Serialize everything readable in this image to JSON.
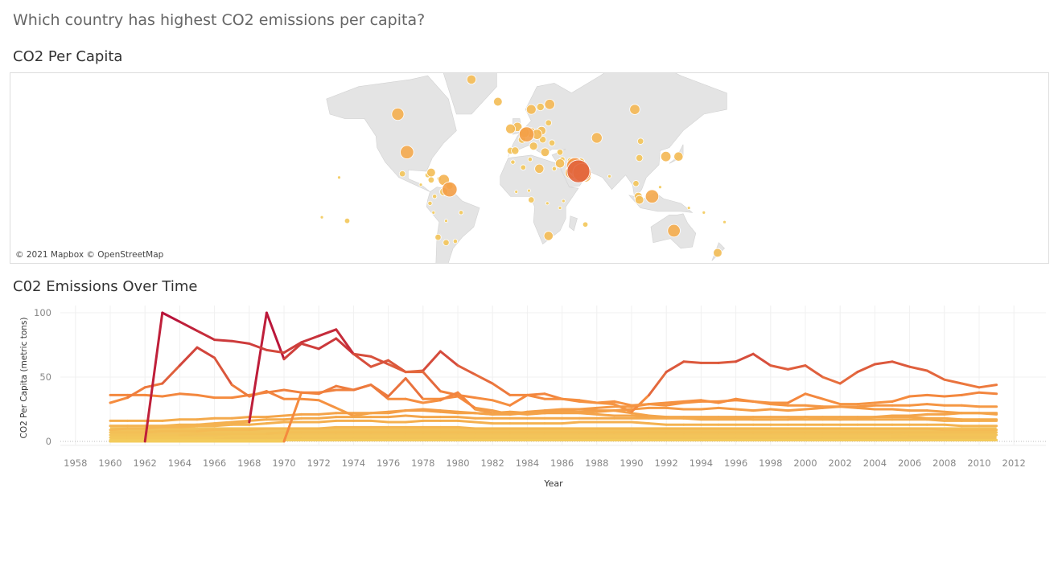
{
  "dashboard": {
    "title": "Which country has highest CO2 emissions per capita?"
  },
  "map": {
    "title": "CO2 Per Capita",
    "credit": "© 2021 Mapbox © OpenStreetMap",
    "bubbles": [
      {
        "lon": -106,
        "lat": 60,
        "v": 16
      },
      {
        "lon": -98,
        "lat": 39,
        "v": 19
      },
      {
        "lon": -42,
        "lat": 72,
        "v": 9
      },
      {
        "lon": -19,
        "lat": 65,
        "v": 8
      },
      {
        "lon": 10,
        "lat": 62,
        "v": 10
      },
      {
        "lon": 18,
        "lat": 63,
        "v": 6
      },
      {
        "lon": 26,
        "lat": 64,
        "v": 11
      },
      {
        "lon": -2,
        "lat": 54,
        "v": 9
      },
      {
        "lon": -8,
        "lat": 53,
        "v": 10
      },
      {
        "lon": 10,
        "lat": 51,
        "v": 10
      },
      {
        "lon": 6,
        "lat": 50,
        "v": 24
      },
      {
        "lon": 4,
        "lat": 51,
        "v": 11
      },
      {
        "lon": 2,
        "lat": 47,
        "v": 6
      },
      {
        "lon": 19,
        "lat": 52,
        "v": 8
      },
      {
        "lon": 25,
        "lat": 56,
        "v": 4
      },
      {
        "lon": 15,
        "lat": 50,
        "v": 11
      },
      {
        "lon": 20,
        "lat": 47,
        "v": 5
      },
      {
        "lon": 12,
        "lat": 43,
        "v": 7
      },
      {
        "lon": -4,
        "lat": 40,
        "v": 6
      },
      {
        "lon": -8,
        "lat": 40,
        "v": 5
      },
      {
        "lon": 22,
        "lat": 39,
        "v": 8
      },
      {
        "lon": 35,
        "lat": 39,
        "v": 4
      },
      {
        "lon": 28,
        "lat": 45,
        "v": 4
      },
      {
        "lon": 35,
        "lat": 31,
        "v": 9
      },
      {
        "lon": 37,
        "lat": 34,
        "v": 3
      },
      {
        "lon": 44,
        "lat": 33,
        "v": 4
      },
      {
        "lon": 45,
        "lat": 24,
        "v": 17
      },
      {
        "lon": 48,
        "lat": 29,
        "v": 30
      },
      {
        "lon": 51,
        "lat": 25,
        "v": 55
      },
      {
        "lon": 50,
        "lat": 26,
        "v": 24
      },
      {
        "lon": 54,
        "lat": 24,
        "v": 35
      },
      {
        "lon": 57,
        "lat": 21,
        "v": 14
      },
      {
        "lon": 53,
        "lat": 32,
        "v": 7
      },
      {
        "lon": 67,
        "lat": 48,
        "v": 12
      },
      {
        "lon": 100,
        "lat": 62,
        "v": 11
      },
      {
        "lon": 105,
        "lat": 46,
        "v": 4
      },
      {
        "lon": 104,
        "lat": 35,
        "v": 5
      },
      {
        "lon": 127,
        "lat": 36,
        "v": 11
      },
      {
        "lon": 138,
        "lat": 36,
        "v": 9
      },
      {
        "lon": 78,
        "lat": 21,
        "v": 1
      },
      {
        "lon": 101,
        "lat": 15,
        "v": 4
      },
      {
        "lon": 103,
        "lat": 4,
        "v": 7
      },
      {
        "lon": 104,
        "lat": 1,
        "v": 8
      },
      {
        "lon": 115,
        "lat": 4,
        "v": 19
      },
      {
        "lon": 122,
        "lat": 12,
        "v": 1
      },
      {
        "lon": 134,
        "lat": -25,
        "v": 17
      },
      {
        "lon": 172,
        "lat": -41,
        "v": 8
      },
      {
        "lon": 160,
        "lat": -10,
        "v": 1
      },
      {
        "lon": 147,
        "lat": -6,
        "v": 1
      },
      {
        "lon": 178,
        "lat": -18,
        "v": 1
      },
      {
        "lon": 3,
        "lat": 28,
        "v": 3
      },
      {
        "lon": 17,
        "lat": 27,
        "v": 9
      },
      {
        "lon": 30,
        "lat": 27,
        "v": 2
      },
      {
        "lon": 9,
        "lat": 34,
        "v": 2
      },
      {
        "lon": -6,
        "lat": 32,
        "v": 2
      },
      {
        "lon": 25,
        "lat": -29,
        "v": 9
      },
      {
        "lon": 57,
        "lat": -20,
        "v": 3
      },
      {
        "lon": 10,
        "lat": 1,
        "v": 4
      },
      {
        "lon": -3,
        "lat": 8,
        "v": 1
      },
      {
        "lon": 8,
        "lat": 9,
        "v": 1
      },
      {
        "lon": 38,
        "lat": 0,
        "v": 1
      },
      {
        "lon": 24,
        "lat": -2,
        "v": 1
      },
      {
        "lon": 35,
        "lat": -6,
        "v": 1
      },
      {
        "lon": -77,
        "lat": 24,
        "v": 8
      },
      {
        "lon": -80,
        "lat": 22,
        "v": 3
      },
      {
        "lon": -70,
        "lat": 19,
        "v": 2
      },
      {
        "lon": -66,
        "lat": 18,
        "v": 13
      },
      {
        "lon": -61,
        "lat": 10,
        "v": 24
      },
      {
        "lon": -61,
        "lat": 13,
        "v": 5
      },
      {
        "lon": -66,
        "lat": 8,
        "v": 7
      },
      {
        "lon": -77,
        "lat": 18,
        "v": 4
      },
      {
        "lon": -102,
        "lat": 23,
        "v": 4
      },
      {
        "lon": -86,
        "lat": 14,
        "v": 1
      },
      {
        "lon": -74,
        "lat": 4,
        "v": 2
      },
      {
        "lon": -78,
        "lat": -2,
        "v": 2
      },
      {
        "lon": -75,
        "lat": -10,
        "v": 1
      },
      {
        "lon": -64,
        "lat": -17,
        "v": 1
      },
      {
        "lon": -71,
        "lat": -30,
        "v": 4
      },
      {
        "lon": -64,
        "lat": -34,
        "v": 4
      },
      {
        "lon": -56,
        "lat": -33,
        "v": 2
      },
      {
        "lon": -51,
        "lat": -10,
        "v": 2
      },
      {
        "lon": -157,
        "lat": 20,
        "v": 1
      },
      {
        "lon": -150,
        "lat": -17,
        "v": 3
      },
      {
        "lon": -172,
        "lat": -14,
        "v": 1
      }
    ]
  },
  "chart": {
    "title": "C02 Emissions Over Time"
  },
  "chart_data": {
    "type": "line",
    "xlabel": "Year",
    "ylabel": "CO2 Per Capita (metric tons)",
    "xlim": [
      1957,
      2013
    ],
    "ylim": [
      -5,
      103
    ],
    "x_ticks": [
      "1958",
      "1960",
      "1962",
      "1964",
      "1966",
      "1968",
      "1970",
      "1972",
      "1974",
      "1976",
      "1978",
      "1980",
      "1982",
      "1984",
      "1986",
      "1988",
      "1990",
      "1992",
      "1994",
      "1996",
      "1998",
      "2000",
      "2002",
      "2004",
      "2006",
      "2008",
      "2010",
      "2012"
    ],
    "y_ticks": [
      "0",
      "50",
      "100"
    ],
    "grid": true,
    "color_scale": {
      "low": "#f3cc5c",
      "mid": "#f58a3e",
      "high": "#b8123a"
    },
    "series": [
      {
        "start": 1960,
        "values": [
          0,
          0,
          0,
          100,
          93,
          86,
          79,
          78,
          76,
          71,
          69,
          77,
          82,
          87,
          68,
          66,
          60,
          54,
          54,
          39,
          36,
          34,
          32,
          28,
          36,
          33,
          33,
          31,
          30,
          31,
          28,
          29,
          30,
          31,
          32,
          30,
          33,
          31,
          29,
          28,
          28,
          27,
          27,
          26,
          25,
          25,
          24,
          24,
          23,
          22,
          22,
          21
        ]
      },
      {
        "start": 1960,
        "values": [
          12,
          12,
          12,
          12,
          12,
          13,
          13,
          14,
          15,
          100,
          64,
          76,
          72,
          80,
          68,
          58,
          63,
          54,
          55,
          70,
          59,
          52,
          45,
          36,
          36,
          37,
          33,
          32,
          30,
          29,
          23,
          36,
          54,
          62,
          61,
          61,
          62,
          68,
          59,
          56,
          59,
          50,
          45,
          54,
          60,
          62,
          58,
          55,
          48,
          45,
          42,
          44
        ]
      },
      {
        "start": 1960,
        "values": [
          30,
          34,
          42,
          45,
          59,
          73,
          65,
          44,
          35,
          39,
          33,
          33,
          32,
          26,
          20,
          22,
          22,
          24,
          25,
          24,
          23,
          22,
          21,
          22,
          21,
          22,
          23,
          23,
          23,
          24,
          25,
          26,
          26,
          25,
          25,
          26,
          25,
          24,
          25,
          24,
          25,
          26,
          27,
          27,
          28,
          28,
          28,
          29,
          28,
          28,
          27,
          27
        ]
      },
      {
        "start": 1960,
        "values": [
          36,
          36,
          36,
          35,
          37,
          36,
          34,
          34,
          36,
          38,
          40,
          38,
          38,
          40,
          40,
          44,
          33,
          33,
          30,
          32,
          38,
          25,
          22,
          23,
          22,
          23,
          24,
          25,
          26,
          27,
          27,
          29,
          28,
          30,
          31,
          31,
          32,
          31,
          30,
          30,
          37,
          33,
          29,
          29,
          30,
          31,
          35,
          36,
          35,
          36,
          38,
          37
        ]
      },
      {
        "start": 1960,
        "values": [
          0,
          0,
          0,
          0,
          0,
          0,
          0,
          0,
          0,
          0,
          0,
          38,
          37,
          43,
          40,
          44,
          35,
          49,
          33,
          33,
          35,
          26,
          24,
          21,
          23,
          24,
          25,
          25,
          24,
          24,
          22,
          20,
          19,
          18,
          18,
          18,
          18,
          17,
          17,
          17,
          19,
          18,
          17,
          18,
          19,
          20,
          20,
          21,
          21,
          22,
          22,
          22
        ]
      },
      {
        "start": 1960,
        "values": [
          16,
          16,
          16,
          16,
          17,
          17,
          18,
          18,
          19,
          19,
          20,
          21,
          21,
          22,
          22,
          22,
          23,
          24,
          24,
          23,
          22,
          22,
          21,
          21,
          22,
          22,
          22,
          22,
          21,
          20,
          20,
          19,
          19,
          19,
          19,
          19,
          19,
          19,
          19,
          19,
          19,
          19,
          19,
          19,
          19,
          19,
          19,
          18,
          18,
          17,
          17,
          17
        ]
      },
      {
        "start": 1960,
        "values": [
          12,
          12,
          12,
          12,
          13,
          13,
          14,
          15,
          16,
          17,
          17,
          18,
          18,
          19,
          19,
          19,
          19,
          20,
          19,
          19,
          19,
          18,
          18,
          18,
          18,
          18,
          18,
          18,
          18,
          18,
          18,
          18,
          18,
          18,
          17,
          17,
          17,
          17,
          17,
          17,
          17,
          17,
          17,
          17,
          17,
          17,
          17,
          17,
          16,
          16,
          16,
          16
        ]
      },
      {
        "start": 1960,
        "values": [
          9,
          10,
          10,
          11,
          11,
          12,
          12,
          13,
          13,
          14,
          15,
          15,
          15,
          16,
          16,
          16,
          15,
          15,
          16,
          16,
          16,
          15,
          14,
          14,
          14,
          14,
          14,
          15,
          15,
          15,
          15,
          14,
          13,
          13,
          13,
          13,
          13,
          13,
          13,
          13,
          13,
          13,
          13,
          13,
          13,
          13,
          13,
          13,
          13,
          12,
          12,
          12
        ]
      },
      {
        "start": 1960,
        "values": [
          7,
          7,
          7,
          8,
          8,
          8,
          9,
          9,
          9,
          10,
          10,
          10,
          10,
          11,
          11,
          11,
          11,
          11,
          11,
          11,
          11,
          10,
          10,
          10,
          10,
          10,
          10,
          10,
          10,
          10,
          10,
          10,
          10,
          10,
          10,
          10,
          10,
          10,
          10,
          10,
          10,
          10,
          10,
          10,
          10,
          10,
          10,
          10,
          9,
          9,
          9,
          9
        ]
      },
      {
        "start": 1960,
        "values": [
          5,
          5,
          5,
          5,
          5,
          6,
          6,
          6,
          6,
          6,
          7,
          7,
          7,
          7,
          7,
          7,
          7,
          7,
          7,
          7,
          7,
          7,
          7,
          7,
          7,
          7,
          7,
          7,
          7,
          7,
          7,
          7,
          7,
          7,
          7,
          7,
          7,
          7,
          7,
          7,
          7,
          7,
          7,
          7,
          7,
          7,
          7,
          7,
          7,
          7,
          7,
          7
        ]
      },
      {
        "start": 1960,
        "values": [
          3,
          3,
          3,
          3,
          3,
          3,
          3,
          4,
          4,
          4,
          4,
          4,
          4,
          4,
          4,
          4,
          4,
          4,
          4,
          4,
          4,
          4,
          4,
          4,
          4,
          4,
          4,
          4,
          4,
          4,
          4,
          4,
          4,
          4,
          4,
          4,
          4,
          4,
          4,
          4,
          4,
          4,
          4,
          4,
          4,
          4,
          5,
          5,
          5,
          5,
          5,
          5
        ]
      },
      {
        "start": 1960,
        "values": [
          1,
          1,
          1,
          1,
          1,
          1,
          1,
          1,
          1,
          1,
          1,
          1,
          1,
          1,
          1,
          1,
          1,
          1,
          1,
          1,
          1,
          1,
          1,
          1,
          1,
          1,
          1,
          1,
          1,
          1,
          1,
          1,
          1,
          1,
          1,
          1,
          1,
          1,
          1,
          1,
          1,
          1,
          1,
          1,
          1,
          1,
          1,
          1,
          1,
          1,
          1,
          1
        ]
      }
    ]
  }
}
